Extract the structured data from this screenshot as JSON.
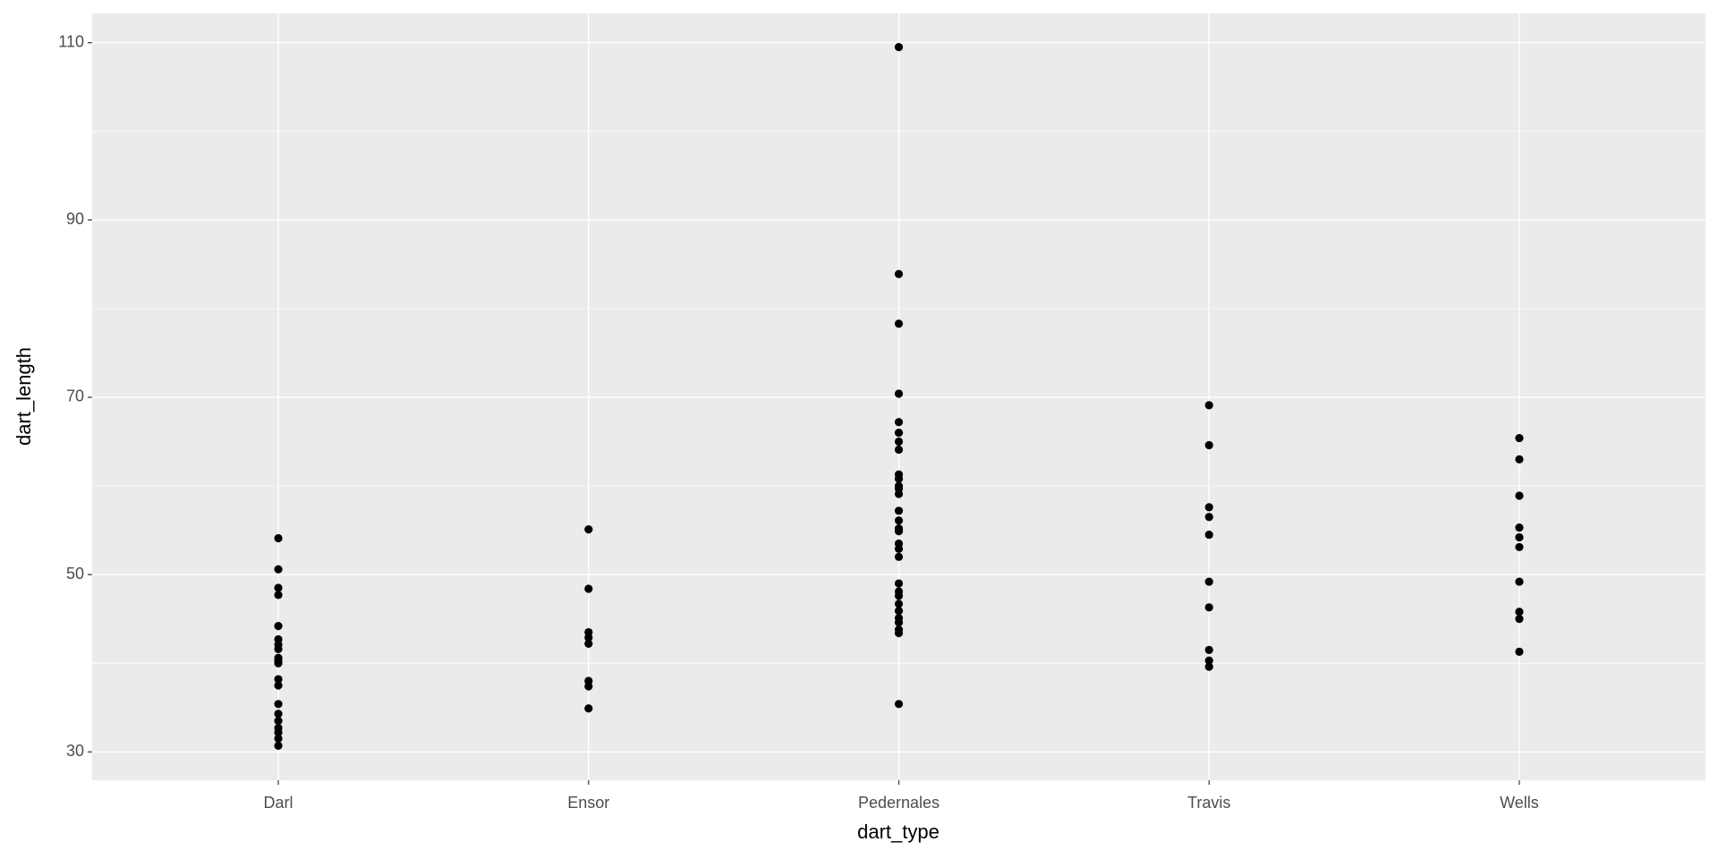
{
  "chart_data": {
    "type": "scatter",
    "x_label": "dart_type",
    "y_label": "dart_length",
    "categories": [
      "Darl",
      "Ensor",
      "Pedernales",
      "Travis",
      "Wells"
    ],
    "values": [
      [
        54.1,
        50.6,
        48.5,
        47.7,
        44.2,
        42.7,
        42.1,
        41.6,
        40.6,
        40.3,
        40.0,
        38.2,
        37.5,
        35.4,
        34.3,
        33.5,
        32.7,
        32.2,
        31.5,
        30.7
      ],
      [
        55.1,
        48.4,
        43.5,
        42.9,
        42.2,
        38.0,
        37.4,
        34.9
      ],
      [
        109.5,
        83.9,
        78.3,
        70.4,
        67.2,
        66.0,
        65.0,
        64.1,
        61.3,
        60.8,
        60.0,
        59.7,
        59.1,
        57.2,
        56.1,
        55.2,
        54.9,
        53.5,
        52.9,
        52.0,
        49.0,
        48.1,
        47.6,
        46.7,
        45.9,
        45.1,
        44.6,
        43.8,
        43.4,
        35.4
      ],
      [
        69.1,
        64.6,
        57.6,
        56.5,
        54.5,
        49.2,
        46.3,
        41.5,
        40.3,
        39.6
      ],
      [
        65.4,
        63.0,
        58.9,
        55.3,
        54.2,
        53.1,
        49.2,
        45.8,
        45.0,
        41.3
      ]
    ],
    "color": "#000000",
    "ylim": [
      26.8,
      113.3
    ],
    "yticks": [
      30,
      50,
      70,
      90,
      110
    ],
    "minor_yticks": [
      40,
      60,
      80,
      100
    ],
    "grid": true
  }
}
